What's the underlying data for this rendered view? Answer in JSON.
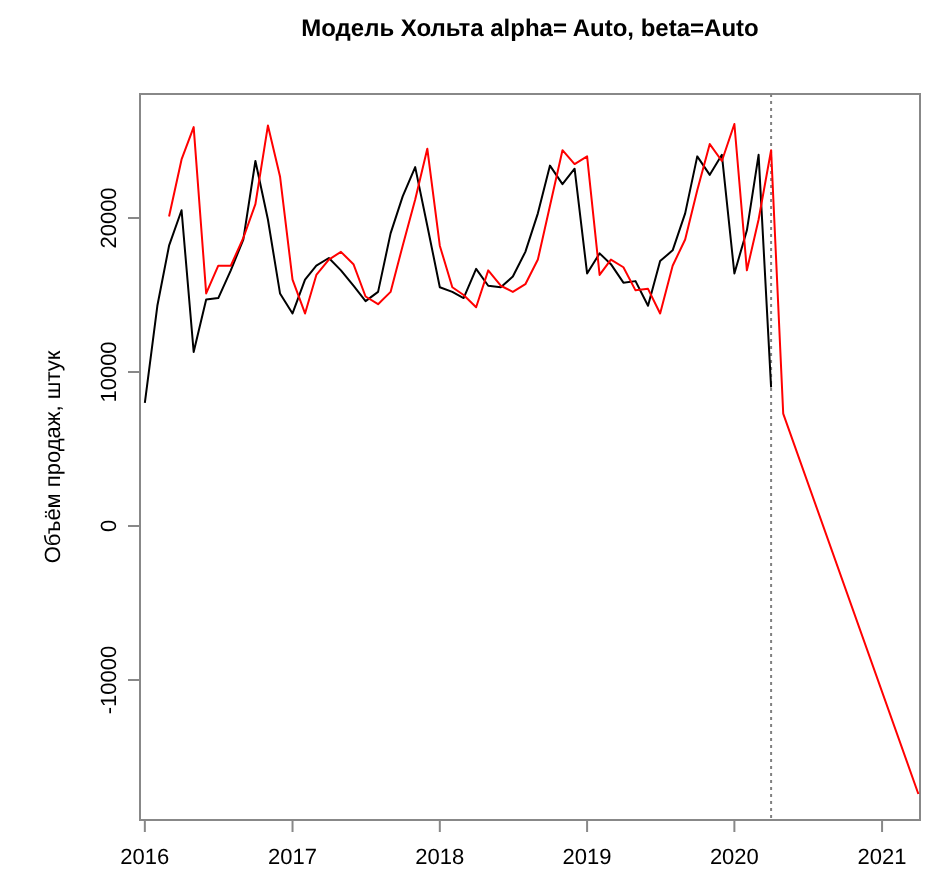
{
  "chart_data": {
    "type": "line",
    "title": "Модель Хольта alpha= Auto, beta=Auto",
    "ylabel": "Объём продаж, штук",
    "xlim": [
      "2015-12-20",
      "2021-04-05"
    ],
    "xticks": [
      "2016",
      "2017",
      "2018",
      "2019",
      "2020",
      "2021"
    ],
    "ylim": [
      -19090,
      28050
    ],
    "yticks": [
      -10000,
      0,
      10000,
      20000
    ],
    "grid": false,
    "series": [
      {
        "color": "#000000",
        "x": [
          "2016-01",
          "2016-02",
          "2016-03",
          "2016-04",
          "2016-05",
          "2016-06",
          "2016-07",
          "2016-08",
          "2016-09",
          "2016-10",
          "2016-11",
          "2016-12",
          "2017-01",
          "2017-02",
          "2017-03",
          "2017-04",
          "2017-05",
          "2017-06",
          "2017-07",
          "2017-08",
          "2017-09",
          "2017-10",
          "2017-11",
          "2017-12",
          "2018-01",
          "2018-02",
          "2018-03",
          "2018-04",
          "2018-05",
          "2018-06",
          "2018-07",
          "2018-08",
          "2018-09",
          "2018-10",
          "2018-11",
          "2018-12",
          "2019-01",
          "2019-02",
          "2019-03",
          "2019-04",
          "2019-05",
          "2019-06",
          "2019-07",
          "2019-08",
          "2019-09",
          "2019-10",
          "2019-11",
          "2019-12",
          "2020-01",
          "2020-02",
          "2020-03",
          "2020-04"
        ],
        "values": [
          8000,
          14300,
          18200,
          20500,
          11300,
          14700,
          14800,
          16600,
          18600,
          23700,
          19900,
          15100,
          13800,
          16000,
          16900,
          17400,
          16600,
          15600,
          14600,
          15200,
          19000,
          21400,
          23300,
          19500,
          15500,
          15200,
          14800,
          16700,
          15600,
          15500,
          16200,
          17800,
          20300,
          23400,
          22200,
          23200,
          16400,
          17700,
          17000,
          15800,
          15900,
          14300,
          17200,
          17900,
          20300,
          24000,
          22800,
          24100,
          16400,
          19200,
          24100,
          9000
        ]
      },
      {
        "color": "#ff0000",
        "x": [
          "2016-03",
          "2016-04",
          "2016-05",
          "2016-06",
          "2016-07",
          "2016-08",
          "2016-09",
          "2016-10",
          "2016-11",
          "2016-12",
          "2017-01",
          "2017-02",
          "2017-03",
          "2017-04",
          "2017-05",
          "2017-06",
          "2017-07",
          "2017-08",
          "2017-09",
          "2017-10",
          "2017-11",
          "2017-12",
          "2018-01",
          "2018-02",
          "2018-03",
          "2018-04",
          "2018-05",
          "2018-06",
          "2018-07",
          "2018-08",
          "2018-09",
          "2018-10",
          "2018-11",
          "2018-12",
          "2019-01",
          "2019-02",
          "2019-03",
          "2019-04",
          "2019-05",
          "2019-06",
          "2019-07",
          "2019-08",
          "2019-09",
          "2019-10",
          "2019-11",
          "2019-12",
          "2020-01",
          "2020-02",
          "2020-03",
          "2020-04",
          "2020-05",
          "2021-04"
        ],
        "values": [
          20100,
          23800,
          25900,
          15100,
          16900,
          16900,
          18700,
          20900,
          26000,
          22700,
          16000,
          13800,
          16300,
          17300,
          17800,
          17000,
          14900,
          14400,
          15200,
          18200,
          21200,
          24500,
          18200,
          15500,
          15000,
          14200,
          16600,
          15600,
          15200,
          15700,
          17300,
          20800,
          24400,
          23500,
          24000,
          16300,
          17300,
          16800,
          15300,
          15400,
          13800,
          16900,
          18600,
          21800,
          24800,
          23700,
          26100,
          16600,
          19900,
          24400,
          7300,
          -17400
        ]
      }
    ],
    "ref_lines": [
      {
        "axis": "x",
        "value": "2020-04",
        "color": "#808080",
        "line_style": "dotted"
      }
    ]
  }
}
